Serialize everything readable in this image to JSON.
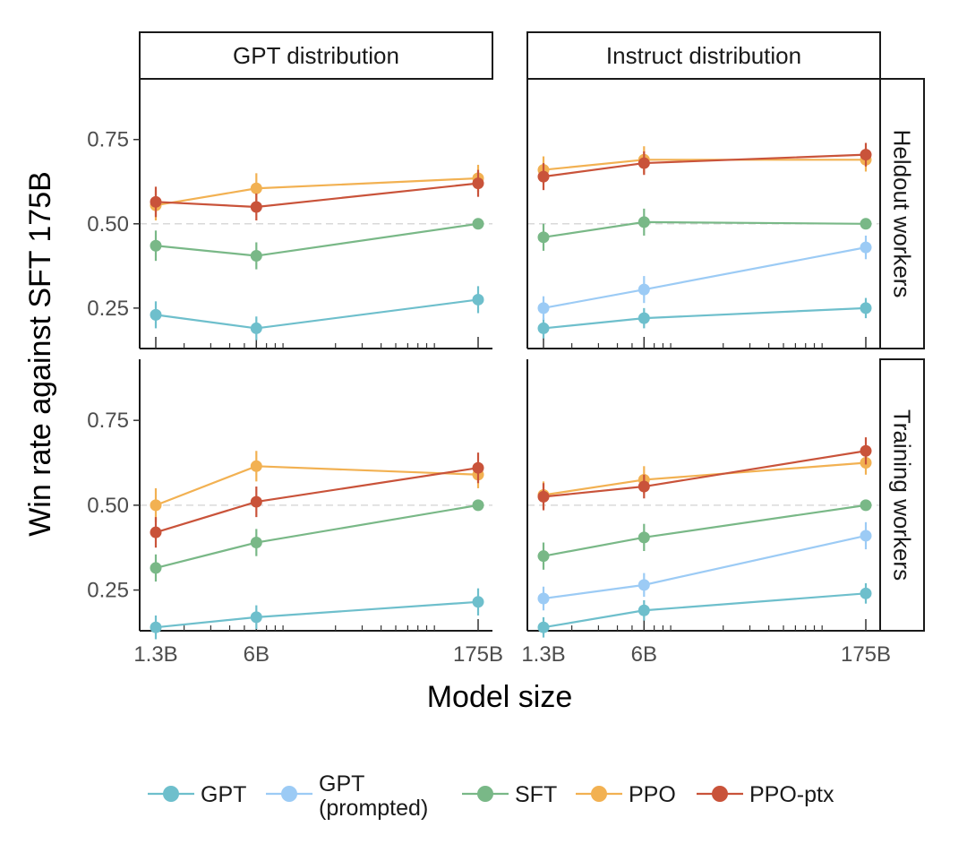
{
  "chart_data": {
    "type": "line",
    "xlabel": "Model size",
    "ylabel": "Win rate against SFT 175B",
    "x_categories": [
      "1.3B",
      "6B",
      "175B"
    ],
    "x_params_billions": [
      1.3,
      6,
      175
    ],
    "x_scale": "log",
    "ylim": [
      0.13,
      0.93
    ],
    "yticks": [
      0.25,
      0.5,
      0.75
    ],
    "ytick_labels": [
      "0.25",
      "0.50",
      "0.75"
    ],
    "reference_line": 0.5,
    "columns": [
      "GPT distribution",
      "Instruct distribution"
    ],
    "rows": [
      "Heldout workers",
      "Training workers"
    ],
    "series_styles": [
      {
        "name": "GPT",
        "color": "#6ebfcc"
      },
      {
        "name": "GPT\n(prompted)",
        "color": "#9ccbf5"
      },
      {
        "name": "SFT",
        "color": "#79b887"
      },
      {
        "name": "PPO",
        "color": "#f2b152"
      },
      {
        "name": "PPO-ptx",
        "color": "#c9533a"
      }
    ],
    "legend": {
      "placement": "bottom",
      "entries": [
        "GPT",
        "GPT\n(prompted)",
        "SFT",
        "PPO",
        "PPO-ptx"
      ]
    },
    "panels": [
      {
        "row": "Heldout workers",
        "column": "GPT distribution",
        "series": [
          {
            "name": "GPT",
            "values": [
              0.23,
              0.19,
              0.275
            ],
            "err": [
              0.04,
              0.035,
              0.04
            ]
          },
          {
            "name": "SFT",
            "values": [
              0.435,
              0.405,
              0.5
            ],
            "err": [
              0.045,
              0.04,
              0.0
            ]
          },
          {
            "name": "PPO",
            "values": [
              0.555,
              0.605,
              0.635
            ],
            "err": [
              0.045,
              0.045,
              0.04
            ]
          },
          {
            "name": "PPO-ptx",
            "values": [
              0.565,
              0.55,
              0.62
            ],
            "err": [
              0.045,
              0.04,
              0.04
            ]
          }
        ]
      },
      {
        "row": "Heldout workers",
        "column": "Instruct distribution",
        "series": [
          {
            "name": "GPT",
            "values": [
              0.19,
              0.22,
              0.25
            ],
            "err": [
              0.03,
              0.03,
              0.03
            ]
          },
          {
            "name": "GPT\n(prompted)",
            "values": [
              0.25,
              0.305,
              0.43
            ],
            "err": [
              0.035,
              0.04,
              0.035
            ]
          },
          {
            "name": "SFT",
            "values": [
              0.46,
              0.505,
              0.5
            ],
            "err": [
              0.04,
              0.04,
              0.0
            ]
          },
          {
            "name": "PPO",
            "values": [
              0.66,
              0.69,
              0.69
            ],
            "err": [
              0.04,
              0.04,
              0.035
            ]
          },
          {
            "name": "PPO-ptx",
            "values": [
              0.64,
              0.68,
              0.705
            ],
            "err": [
              0.04,
              0.035,
              0.035
            ]
          }
        ]
      },
      {
        "row": "Training workers",
        "column": "GPT distribution",
        "series": [
          {
            "name": "GPT",
            "values": [
              0.14,
              0.17,
              0.215
            ],
            "err": [
              0.035,
              0.035,
              0.04
            ]
          },
          {
            "name": "SFT",
            "values": [
              0.315,
              0.39,
              0.5
            ],
            "err": [
              0.04,
              0.04,
              0.0
            ]
          },
          {
            "name": "PPO",
            "values": [
              0.5,
              0.615,
              0.59
            ],
            "err": [
              0.05,
              0.045,
              0.04
            ]
          },
          {
            "name": "PPO-ptx",
            "values": [
              0.42,
              0.51,
              0.61
            ],
            "err": [
              0.045,
              0.045,
              0.045
            ]
          }
        ]
      },
      {
        "row": "Training workers",
        "column": "Instruct distribution",
        "series": [
          {
            "name": "GPT",
            "values": [
              0.14,
              0.19,
              0.24
            ],
            "err": [
              0.03,
              0.03,
              0.03
            ]
          },
          {
            "name": "GPT\n(prompted)",
            "values": [
              0.225,
              0.265,
              0.41
            ],
            "err": [
              0.035,
              0.035,
              0.04
            ]
          },
          {
            "name": "SFT",
            "values": [
              0.35,
              0.405,
              0.5
            ],
            "err": [
              0.04,
              0.04,
              0.0
            ]
          },
          {
            "name": "PPO",
            "values": [
              0.53,
              0.575,
              0.625
            ],
            "err": [
              0.04,
              0.04,
              0.035
            ]
          },
          {
            "name": "PPO-ptx",
            "values": [
              0.525,
              0.555,
              0.66
            ],
            "err": [
              0.04,
              0.035,
              0.04
            ]
          }
        ]
      }
    ]
  }
}
